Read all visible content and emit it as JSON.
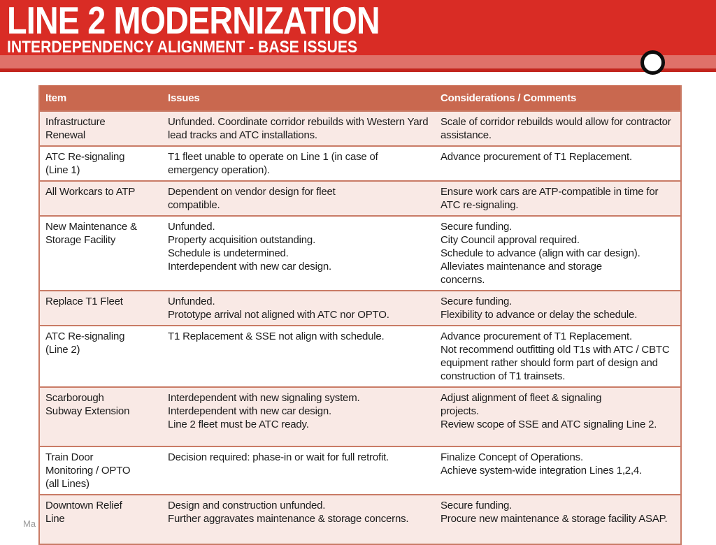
{
  "slide": {
    "title": "LINE 2 MODERNIZATION",
    "subtitle": "INTERDEPENDENCY ALIGNMENT - BASE ISSUES"
  },
  "footer": {
    "note": "Ma"
  },
  "table": {
    "headers": [
      "Item",
      "Issues",
      "Considerations / Comments"
    ],
    "rows": [
      {
        "item": [
          "Infrastructure",
          "Renewal"
        ],
        "issues": [
          "Unfunded. Coordinate corridor rebuilds with Western Yard lead tracks and ATC installations."
        ],
        "considerations": [
          "Scale of corridor rebuilds would allow for contractor assistance."
        ]
      },
      {
        "item": [
          "ATC Re-signaling",
          "(Line 1)"
        ],
        "issues": [
          "T1 fleet unable to operate on Line 1 (in case of emergency operation)."
        ],
        "considerations": [
          "Advance procurement of T1 Replacement."
        ]
      },
      {
        "item": [
          "All Workcars to ATP"
        ],
        "issues": [
          "Dependent on vendor design for fleet",
          "compatible."
        ],
        "considerations": [
          "Ensure work cars are ATP-compatible in time for ATC re-signaling."
        ]
      },
      {
        "item": [
          "New Maintenance &",
          "Storage Facility"
        ],
        "issues": [
          "Unfunded.",
          "Property acquisition outstanding.",
          "Schedule is undetermined.",
          "Interdependent with new car design."
        ],
        "considerations": [
          "Secure funding.",
          "City Council approval required.",
          "Schedule to advance (align with car design).",
          "Alleviates maintenance and storage",
          "concerns."
        ]
      },
      {
        "item": [
          "Replace T1 Fleet"
        ],
        "issues": [
          "Unfunded.",
          "Prototype arrival not aligned with ATC nor OPTO."
        ],
        "considerations": [
          "Secure funding.",
          "Flexibility to advance or delay the schedule."
        ]
      },
      {
        "item": [
          "ATC Re-signaling",
          "(Line 2)"
        ],
        "issues": [
          "T1 Replacement & SSE not align with schedule."
        ],
        "considerations": [
          "Advance procurement of T1 Replacement.",
          "Not recommend outfitting  old T1s with ATC / CBTC equipment rather should form part of design and construction of T1 trainsets."
        ]
      },
      {
        "item": [
          "Scarborough",
          "Subway Extension"
        ],
        "issues": [
          "Interdependent with new signaling system.",
          "Interdependent with new car design.",
          "Line 2 fleet must be ATC ready."
        ],
        "considerations": [
          "Adjust alignment of fleet & signaling",
          "projects.",
          "Review scope of SSE and ATC signaling Line 2."
        ]
      },
      {
        "item": [
          "Train Door",
          "Monitoring / OPTO",
          "(all Lines)"
        ],
        "issues": [
          "Decision required: phase-in or wait for full retrofit."
        ],
        "considerations": [
          "Finalize Concept of Operations.",
          "Achieve system-wide integration Lines 1,2,4."
        ]
      },
      {
        "item": [
          "Downtown Relief",
          "Line"
        ],
        "issues": [
          "Design and construction unfunded.",
          "Further aggravates maintenance & storage concerns."
        ],
        "considerations": [
          "Secure funding.",
          "Procure new maintenance & storage facility ASAP."
        ]
      }
    ]
  },
  "colors": {
    "banner_red": "#d92c25",
    "banner_stripe": "#df7169",
    "banner_line": "#c2251d",
    "table_header_bg": "#c9684f",
    "row_pink": "#f9e9e5",
    "row_white": "#ffffff",
    "table_border": "#c97b66",
    "text": "#1c1c1c",
    "footer_gray": "#9a9a9a"
  }
}
